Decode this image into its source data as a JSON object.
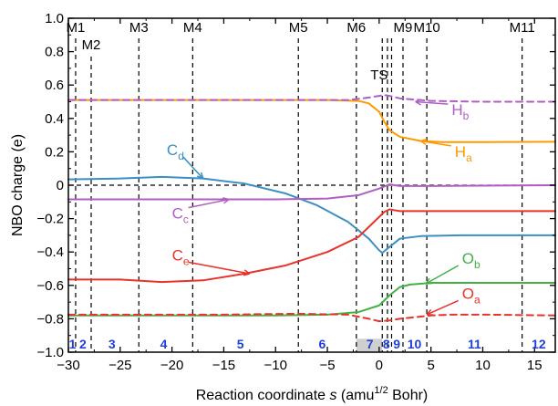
{
  "chart_data": {
    "type": "line",
    "xlabel": "Reaction coordinate s (amu1/2 Bohr)",
    "xlabel_parts": {
      "pre": "Reaction coordinate ",
      "italic": "s",
      "mid": " (amu",
      "sup": "1/2",
      "post": " Bohr)"
    },
    "ylabel": "NBO charge (e)",
    "xlim": [
      -30,
      17
    ],
    "ylim": [
      -1.0,
      1.0
    ],
    "xticks": [
      -30,
      -25,
      -20,
      -15,
      -10,
      -5,
      0,
      5,
      10,
      15
    ],
    "xtick_labels": [
      "−30",
      "−25",
      "−20",
      "−15",
      "−10",
      "−5",
      "0",
      "5",
      "10",
      "15"
    ],
    "yticks": [
      -1.0,
      -0.8,
      -0.6,
      -0.4,
      -0.2,
      0,
      0.2,
      0.4,
      0.6,
      0.8,
      1.0
    ],
    "ytick_labels": [
      "−1.0",
      "−0.8",
      "−0.6",
      "−0.4",
      "−0.2",
      "0",
      "0.2",
      "0.4",
      "0.6",
      "0.8",
      "1.0"
    ],
    "zero_line": true,
    "markers": [
      {
        "label": "M1",
        "x": -29.3,
        "label_row": 1
      },
      {
        "label": "M2",
        "x": -27.8,
        "label_row": 2
      },
      {
        "label": "M3",
        "x": -23.2,
        "label_row": 1
      },
      {
        "label": "M4",
        "x": -18.0,
        "label_row": 1
      },
      {
        "label": "M5",
        "x": -7.8,
        "label_row": 1
      },
      {
        "label": "M6",
        "x": -2.2,
        "label_row": 1
      },
      {
        "label": "",
        "x": 0.3,
        "label_row": 1
      },
      {
        "label": "",
        "x": 0.8,
        "label_row": 1
      },
      {
        "label": "",
        "x": 1.2,
        "label_row": 1
      },
      {
        "label": "M9",
        "x": 2.3,
        "label_row": 1
      },
      {
        "label": "M10",
        "x": 4.6,
        "label_row": 1
      },
      {
        "label": "M11",
        "x": 13.8,
        "label_row": 1
      }
    ],
    "ts_label": {
      "text": "TS",
      "x": 0.0,
      "y": 0.66
    },
    "regions": [
      {
        "label": "1",
        "x": -29.6
      },
      {
        "label": "2",
        "x": -28.6
      },
      {
        "label": "3",
        "x": -25.8
      },
      {
        "label": "4",
        "x": -20.8
      },
      {
        "label": "5",
        "x": -13.4
      },
      {
        "label": "6",
        "x": -5.5
      },
      {
        "label": "7",
        "x": -0.9
      },
      {
        "label": "8",
        "x": 0.7
      },
      {
        "label": "9",
        "x": 1.7
      },
      {
        "label": "10",
        "x": 3.4
      },
      {
        "label": "11",
        "x": 9.2
      },
      {
        "label": "12",
        "x": 15.4
      }
    ],
    "highlight_region": {
      "x0": -2.2,
      "x1": 0.3,
      "y0": -1.0,
      "y1": -0.92,
      "color": "#cfcfcf"
    },
    "series": [
      {
        "name": "Ha",
        "color": "#ff9900",
        "dash": false,
        "x": [
          -30,
          -20,
          -10,
          -5,
          -2,
          -1,
          0,
          0.5,
          1,
          2,
          4,
          6,
          10,
          17
        ],
        "y": [
          0.51,
          0.51,
          0.51,
          0.51,
          0.505,
          0.49,
          0.44,
          0.38,
          0.33,
          0.29,
          0.265,
          0.258,
          0.258,
          0.26
        ]
      },
      {
        "name": "Hb",
        "color": "#b05ec4",
        "dash": true,
        "x": [
          -30,
          -10,
          -3,
          -1,
          0,
          0.5,
          1,
          2,
          5,
          10,
          17
        ],
        "y": [
          0.51,
          0.51,
          0.51,
          0.525,
          0.535,
          0.54,
          0.535,
          0.52,
          0.505,
          0.5,
          0.5
        ]
      },
      {
        "name": "Cd",
        "color": "#3b8fc4",
        "dash": false,
        "x": [
          -30,
          -25,
          -21,
          -17,
          -13,
          -9,
          -6,
          -3,
          -1,
          0,
          0.3,
          1,
          2,
          4,
          8,
          17
        ],
        "y": [
          0.035,
          0.04,
          0.05,
          0.04,
          0.01,
          -0.05,
          -0.12,
          -0.22,
          -0.32,
          -0.39,
          -0.405,
          -0.37,
          -0.32,
          -0.305,
          -0.3,
          -0.3
        ]
      },
      {
        "name": "Cc",
        "color": "#b05ec4",
        "dash": false,
        "x": [
          -30,
          -20,
          -10,
          -5,
          -2,
          0,
          1,
          2,
          5,
          17
        ],
        "y": [
          -0.085,
          -0.085,
          -0.085,
          -0.08,
          -0.06,
          -0.02,
          0.005,
          -0.005,
          -0.005,
          0.0
        ]
      },
      {
        "name": "Ce",
        "color": "#e8322a",
        "dash": false,
        "x": [
          -30,
          -25,
          -21,
          -17,
          -13,
          -9,
          -5,
          -2,
          -0.5,
          0.5,
          1,
          1.5,
          2,
          5,
          17
        ],
        "y": [
          -0.565,
          -0.565,
          -0.58,
          -0.57,
          -0.53,
          -0.48,
          -0.4,
          -0.31,
          -0.22,
          -0.16,
          -0.145,
          -0.15,
          -0.155,
          -0.155,
          -0.155
        ]
      },
      {
        "name": "Ob",
        "color": "#44b044",
        "dash": false,
        "x": [
          -30,
          -20,
          -10,
          -5,
          -2,
          0,
          1,
          2,
          3,
          5,
          10,
          17
        ],
        "y": [
          -0.78,
          -0.78,
          -0.78,
          -0.775,
          -0.76,
          -0.72,
          -0.66,
          -0.61,
          -0.595,
          -0.585,
          -0.585,
          -0.585
        ]
      },
      {
        "name": "Oa",
        "color": "#e8322a",
        "dash": true,
        "x": [
          -30,
          -15,
          -8,
          -3,
          -1,
          0,
          1,
          2,
          5,
          7,
          10,
          17
        ],
        "y": [
          -0.775,
          -0.775,
          -0.77,
          -0.775,
          -0.8,
          -0.815,
          -0.81,
          -0.8,
          -0.78,
          -0.775,
          -0.775,
          -0.78
        ]
      }
    ],
    "annotations": [
      {
        "letter": "H",
        "sub": "b",
        "color": "#b05ec4",
        "text_x": 7.0,
        "text_y": 0.42,
        "arrow_to": [
          3.5,
          0.5
        ]
      },
      {
        "letter": "H",
        "sub": "a",
        "color": "#ff9900",
        "text_x": 7.3,
        "text_y": 0.17,
        "arrow_to": [
          4.0,
          0.265
        ]
      },
      {
        "letter": "C",
        "sub": "d",
        "color": "#3b8fc4",
        "text_x": -20.5,
        "text_y": 0.18,
        "arrow_to": [
          -17.0,
          0.04
        ]
      },
      {
        "letter": "C",
        "sub": "c",
        "color": "#b05ec4",
        "text_x": -20.0,
        "text_y": -0.2,
        "arrow_to": [
          -14.5,
          -0.085
        ]
      },
      {
        "letter": "C",
        "sub": "e",
        "color": "#e8322a",
        "text_x": -20.0,
        "text_y": -0.45,
        "arrow_to": [
          -12.5,
          -0.53
        ]
      },
      {
        "letter": "O",
        "sub": "b",
        "color": "#44b044",
        "text_x": 8.0,
        "text_y": -0.47,
        "arrow_to": [
          4.5,
          -0.59
        ]
      },
      {
        "letter": "O",
        "sub": "a",
        "color": "#e8322a",
        "text_x": 8.0,
        "text_y": -0.68,
        "arrow_to": [
          4.6,
          -0.775
        ]
      }
    ]
  }
}
